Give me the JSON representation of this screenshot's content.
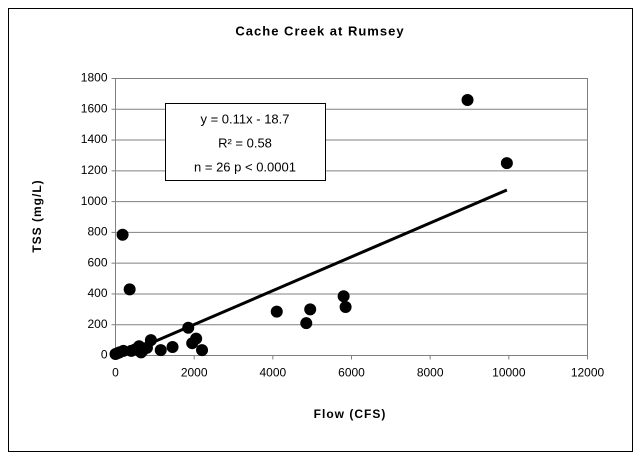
{
  "chart_data": {
    "type": "scatter",
    "title": "Cache Creek at Rumsey",
    "x_label": "Flow (CFS)",
    "y_label": "TSS (mg/L)",
    "series": [
      {
        "color": "#000000",
        "x": [
          8950,
          9950,
          180,
          360,
          4100,
          4850,
          4950,
          5800,
          5850,
          0,
          50,
          100,
          200,
          400,
          500,
          600,
          650,
          700,
          800,
          900,
          1150,
          1450,
          1850,
          1950,
          2050,
          2200
        ],
        "values": [
          1660,
          1250,
          785,
          430,
          285,
          210,
          300,
          385,
          315,
          10,
          15,
          20,
          30,
          30,
          40,
          60,
          20,
          35,
          50,
          100,
          35,
          55,
          180,
          80,
          110,
          35
        ]
      }
    ],
    "trendline": {
      "slope": 0.11,
      "intercept": -18.7,
      "x": [
        0,
        9950
      ],
      "color": "#000000"
    },
    "annotations": [
      "y = 0.11x - 18.7",
      "R² = 0.58",
      "n = 26  p < 0.0001"
    ],
    "xlim": [
      0,
      12000
    ],
    "xticks": [
      0,
      2000,
      4000,
      6000,
      8000,
      10000,
      12000
    ],
    "ylim": [
      0,
      1800
    ],
    "yticks": [
      0,
      200,
      400,
      600,
      800,
      1000,
      1200,
      1400,
      1600,
      1800
    ],
    "grid": true
  }
}
